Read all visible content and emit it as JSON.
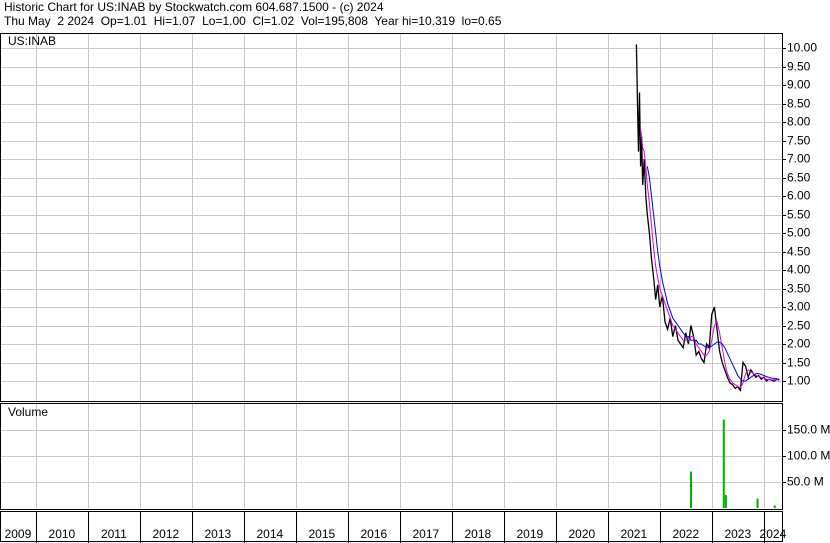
{
  "header": {
    "title": "Historic Chart for US:INAB by Stockwatch.com 604.687.1500 - (c) 2024",
    "quote": "Thu May  2 2024  Op=1.01  Hi=1.07  Lo=1.00  Cl=1.02  Vol=195,808  Year hi=10.319  lo=0.65"
  },
  "chart_data": [
    {
      "type": "line",
      "label": "US:INAB",
      "grid": true,
      "xlim": [
        2009.31,
        2024.35
      ],
      "ylim": [
        0.46,
        10.38
      ],
      "yticks": [
        {
          "value": 1,
          "label": "1.00"
        },
        {
          "value": 1.5,
          "label": "1.50"
        },
        {
          "value": 2,
          "label": "2.00"
        },
        {
          "value": 2.5,
          "label": "2.50"
        },
        {
          "value": 3,
          "label": "3.00"
        },
        {
          "value": 3.5,
          "label": "3.50"
        },
        {
          "value": 4,
          "label": "4.00"
        },
        {
          "value": 4.5,
          "label": "4.50"
        },
        {
          "value": 5,
          "label": "5.00"
        },
        {
          "value": 5.5,
          "label": "5.50"
        },
        {
          "value": 6,
          "label": "6.00"
        },
        {
          "value": 6.5,
          "label": "6.50"
        },
        {
          "value": 7,
          "label": "7.00"
        },
        {
          "value": 7.5,
          "label": "7.50"
        },
        {
          "value": 8,
          "label": "8.00"
        },
        {
          "value": 8.5,
          "label": "8.50"
        },
        {
          "value": 9,
          "label": "9.00"
        },
        {
          "value": 9.5,
          "label": "9.50"
        },
        {
          "value": 10,
          "label": "10.00"
        }
      ],
      "x": [
        2021.55,
        2021.57,
        2021.59,
        2021.61,
        2021.63,
        2021.65,
        2021.67,
        2021.7,
        2021.73,
        2021.76,
        2021.8,
        2021.84,
        2021.88,
        2021.92,
        2021.96,
        2022.0,
        2022.05,
        2022.1,
        2022.15,
        2022.2,
        2022.25,
        2022.3,
        2022.35,
        2022.4,
        2022.45,
        2022.5,
        2022.55,
        2022.6,
        2022.65,
        2022.7,
        2022.75,
        2022.8,
        2022.85,
        2022.9,
        2022.95,
        2023.0,
        2023.05,
        2023.1,
        2023.15,
        2023.2,
        2023.25,
        2023.3,
        2023.35,
        2023.4,
        2023.45,
        2023.5,
        2023.55,
        2023.6,
        2023.65,
        2023.7,
        2023.75,
        2023.8,
        2023.85,
        2023.9,
        2023.95,
        2024.0,
        2024.05,
        2024.1,
        2024.15,
        2024.2,
        2024.25,
        2024.3
      ],
      "series": [
        {
          "color": "#000000",
          "values": [
            10.1,
            8.5,
            7.2,
            8.8,
            6.8,
            7.6,
            6.3,
            7.0,
            6.0,
            5.5,
            5.0,
            4.3,
            3.8,
            3.2,
            3.6,
            3.0,
            3.3,
            2.6,
            2.4,
            2.7,
            2.2,
            2.5,
            2.1,
            2.0,
            1.9,
            2.3,
            2.0,
            2.5,
            2.2,
            1.7,
            1.8,
            1.6,
            1.5,
            2.0,
            1.9,
            2.8,
            3.0,
            2.4,
            1.8,
            1.5,
            1.3,
            1.1,
            0.95,
            0.9,
            0.8,
            0.85,
            0.75,
            1.5,
            1.4,
            1.1,
            1.3,
            1.2,
            1.1,
            1.15,
            1.05,
            1.1,
            1.0,
            1.05,
            1.02,
            1.0,
            1.05,
            1.02
          ]
        },
        {
          "color": "#e000e0",
          "values": [
            null,
            null,
            null,
            null,
            7.8,
            7.6,
            7.3,
            7.2,
            6.8,
            6.3,
            5.8,
            5.2,
            4.6,
            4.1,
            3.8,
            3.5,
            3.3,
            3.1,
            2.9,
            2.7,
            2.5,
            2.4,
            2.3,
            2.2,
            2.1,
            2.1,
            2.1,
            2.2,
            2.2,
            2.0,
            1.9,
            1.8,
            1.7,
            1.7,
            1.8,
            2.1,
            2.5,
            2.6,
            2.3,
            1.9,
            1.5,
            1.2,
            1.05,
            0.95,
            0.9,
            0.85,
            0.82,
            0.95,
            1.2,
            1.3,
            1.25,
            1.2,
            1.15,
            1.12,
            1.1,
            1.08,
            1.05,
            1.04,
            1.03,
            1.03,
            1.03,
            1.03
          ]
        },
        {
          "color": "#0000e0",
          "values": [
            null,
            null,
            null,
            null,
            null,
            null,
            null,
            null,
            null,
            6.8,
            6.5,
            6.0,
            5.5,
            5.0,
            4.5,
            4.1,
            3.7,
            3.4,
            3.1,
            2.9,
            2.7,
            2.6,
            2.5,
            2.4,
            2.3,
            2.2,
            2.2,
            2.1,
            2.1,
            2.1,
            2.0,
            2.0,
            1.95,
            1.9,
            1.9,
            1.95,
            2.0,
            2.05,
            2.05,
            2.0,
            1.9,
            1.75,
            1.6,
            1.45,
            1.3,
            1.15,
            1.05,
            1.0,
            1.0,
            1.05,
            1.1,
            1.15,
            1.2,
            1.2,
            1.18,
            1.15,
            1.12,
            1.1,
            1.08,
            1.07,
            1.06,
            1.05
          ]
        }
      ]
    },
    {
      "type": "bar",
      "label": "Volume",
      "color": "#00b000",
      "xlim": [
        2009.31,
        2024.35
      ],
      "xticks": [
        2010,
        2011,
        2012,
        2013,
        2014,
        2015,
        2016,
        2017,
        2018,
        2019,
        2020,
        2021,
        2022,
        2023,
        2024
      ],
      "xlabels": [
        2009,
        2010,
        2011,
        2012,
        2013,
        2014,
        2015,
        2016,
        2017,
        2018,
        2019,
        2020,
        2021,
        2022,
        2023,
        2024
      ],
      "ylim": [
        0,
        200
      ],
      "yticks": [
        {
          "value": 50,
          "label": "50.0 M"
        },
        {
          "value": 100,
          "label": "100.0 M"
        },
        {
          "value": 150,
          "label": "150.0 M"
        }
      ],
      "x": [
        2022.6,
        2023.23,
        2023.27,
        2023.88,
        2024.21
      ],
      "values": [
        70,
        170,
        25,
        18,
        5
      ]
    }
  ]
}
